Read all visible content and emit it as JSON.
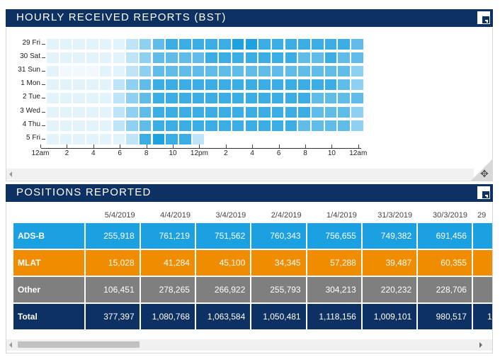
{
  "panels": {
    "hourly": {
      "title": "HOURLY RECEIVED REPORTS (BST)"
    },
    "positions": {
      "title": "POSITIONS REPORTED"
    }
  },
  "heatmap": {
    "rows": [
      "29 Fri",
      "30 Sat",
      "31 Sun",
      "1 Mon",
      "2 Tue",
      "3 Wed",
      "4 Thu",
      "5 Fri"
    ],
    "x_labels": [
      "12am",
      "2",
      "4",
      "6",
      "8",
      "10",
      "12pm",
      "2",
      "4",
      "6",
      "8",
      "10",
      "12am"
    ],
    "levels": [
      [
        1,
        1,
        1,
        1,
        1,
        1,
        2,
        3,
        4,
        5,
        5,
        5,
        5,
        5,
        6,
        6,
        5,
        5,
        5,
        5,
        5,
        5,
        5,
        4
      ],
      [
        1,
        1,
        1,
        1,
        1,
        1,
        2,
        3,
        4,
        4,
        4,
        4,
        5,
        5,
        5,
        5,
        5,
        5,
        5,
        4,
        4,
        5,
        4,
        4
      ],
      [
        1,
        0,
        0,
        0,
        1,
        1,
        2,
        3,
        4,
        4,
        4,
        4,
        4,
        4,
        4,
        4,
        4,
        4,
        4,
        4,
        4,
        4,
        4,
        3
      ],
      [
        1,
        1,
        1,
        1,
        1,
        2,
        3,
        4,
        5,
        5,
        5,
        5,
        5,
        5,
        5,
        5,
        5,
        5,
        5,
        5,
        5,
        5,
        4,
        3
      ],
      [
        1,
        1,
        1,
        1,
        1,
        2,
        3,
        4,
        5,
        5,
        5,
        5,
        5,
        5,
        5,
        5,
        5,
        5,
        5,
        5,
        4,
        4,
        4,
        4
      ],
      [
        1,
        1,
        1,
        1,
        1,
        2,
        3,
        4,
        5,
        5,
        5,
        5,
        5,
        5,
        5,
        5,
        5,
        5,
        5,
        5,
        4,
        4,
        4,
        3
      ],
      [
        1,
        1,
        1,
        1,
        1,
        2,
        3,
        4,
        5,
        5,
        5,
        5,
        5,
        5,
        5,
        5,
        5,
        5,
        5,
        4,
        4,
        4,
        4,
        3
      ],
      [
        1,
        1,
        1,
        1,
        1,
        1,
        2,
        5,
        6,
        5,
        5,
        2,
        -1,
        -1,
        -1,
        -1,
        -1,
        -1,
        -1,
        -1,
        -1,
        -1,
        -1,
        -1
      ]
    ],
    "palette": [
      "#f2f9fe",
      "#e3f3fc",
      "#bfe4f7",
      "#8ed0f1",
      "#5fbce9",
      "#3aaee4",
      "#1ea2df"
    ]
  },
  "positions_table": {
    "columns": [
      "5/4/2019",
      "4/4/2019",
      "3/4/2019",
      "2/4/2019",
      "1/4/2019",
      "31/3/2019",
      "30/3/2019",
      "29"
    ],
    "rows": [
      {
        "label": "ADS-B",
        "values": [
          "255,918",
          "761,219",
          "751,562",
          "760,343",
          "756,655",
          "749,382",
          "691,456",
          ""
        ]
      },
      {
        "label": "MLAT",
        "values": [
          "15,028",
          "41,284",
          "45,100",
          "34,345",
          "57,288",
          "39,487",
          "60,355",
          ""
        ]
      },
      {
        "label": "Other",
        "values": [
          "106,451",
          "278,265",
          "266,922",
          "255,793",
          "304,213",
          "220,232",
          "228,706",
          ""
        ]
      },
      {
        "label": "Total",
        "values": [
          "377,397",
          "1,080,768",
          "1,063,584",
          "1,050,481",
          "1,118,156",
          "1,009,101",
          "980,517",
          "1"
        ]
      }
    ]
  },
  "scroll": {
    "heatmap_thumb_fraction": 0.0,
    "positions_thumb_fraction": 0.25
  }
}
